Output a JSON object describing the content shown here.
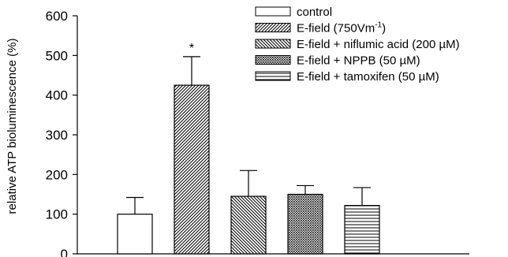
{
  "chart_data": {
    "type": "bar",
    "title": "",
    "xlabel": "",
    "ylabel": "relative ATP bioluminescence (%)",
    "ylim": [
      0,
      600
    ],
    "yticks": [
      0,
      100,
      200,
      300,
      400,
      500,
      600
    ],
    "ytick_labels": [
      "0",
      "100",
      "200",
      "300",
      "400",
      "500",
      "600"
    ],
    "grid": false,
    "legend_position": "top-right",
    "categories": [
      "control",
      "E-field (750Vm-1)",
      "E-field + niflumic acid (200 µM)",
      "E-field + NPPB (50 µM)",
      "E-field + tamoxifen (50 µM)"
    ],
    "series": [
      {
        "values": [
          100,
          425,
          145,
          150,
          122
        ],
        "error": [
          42,
          72,
          65,
          22,
          45
        ]
      }
    ],
    "legend": [
      {
        "label": "control",
        "pattern": "white"
      },
      {
        "label": "E-field (750Vm",
        "superscript": "-1",
        "suffix": ")",
        "pattern": "diag-forward"
      },
      {
        "label": "E-field + niflumic acid (200 µM)",
        "pattern": "diag-backward"
      },
      {
        "label": "E-field + NPPB (50 µM)",
        "pattern": "crosshatch"
      },
      {
        "label": "E-field + tamoxifen (50 µM)",
        "pattern": "horizontal"
      }
    ],
    "annotations": [
      {
        "text": "*",
        "bar_index": 1
      }
    ]
  }
}
